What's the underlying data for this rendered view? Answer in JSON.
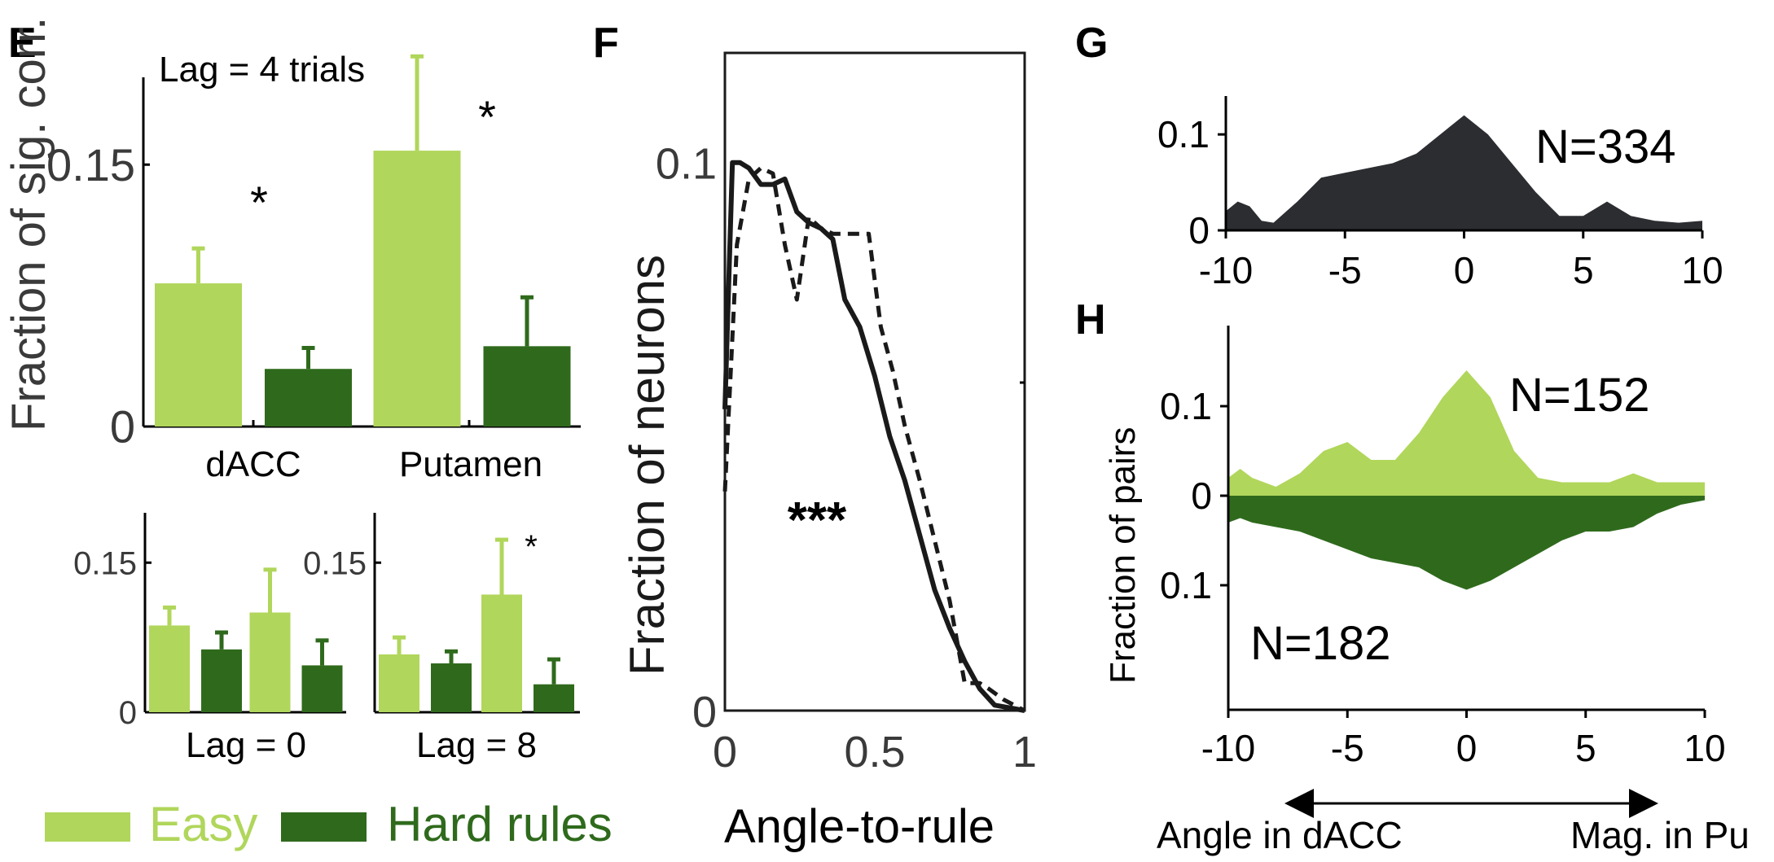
{
  "colors": {
    "easy": "#b0d65b",
    "hard": "#2f6a1c",
    "dark": "#2b2d31",
    "line": "#1a1a1a"
  },
  "panel_letters": {
    "E": "E",
    "F": "F",
    "G": "G",
    "H": "H"
  },
  "legend": {
    "easy": "Easy",
    "hard": "Hard rules"
  },
  "chart_data": [
    {
      "id": "E-main",
      "type": "bar",
      "title": "Lag = 4 trials",
      "ylabel": "Fraction of sig. corr.",
      "categories": [
        "dACC",
        "Putamen"
      ],
      "series": [
        {
          "name": "Easy",
          "values": [
            0.082,
            0.158
          ],
          "errors": [
            0.02,
            0.054
          ]
        },
        {
          "name": "Hard rules",
          "values": [
            0.033,
            0.046
          ],
          "errors": [
            0.012,
            0.028
          ]
        }
      ],
      "ylim": [
        0,
        0.2
      ],
      "yticks": [
        0,
        0.15
      ],
      "ytick_labels": [
        "0",
        "0.15"
      ],
      "annotations": [
        "*",
        "*"
      ]
    },
    {
      "id": "E-lag0",
      "type": "bar",
      "xlabel": "Lag = 0",
      "series": [
        {
          "name": "Easy",
          "values": [
            0.087,
            0.1
          ],
          "errors": [
            0.018,
            0.043
          ]
        },
        {
          "name": "Hard rules",
          "values": [
            0.063,
            0.047
          ],
          "errors": [
            0.017,
            0.025
          ]
        }
      ],
      "ylim": [
        0,
        0.2
      ],
      "yticks": [
        0,
        0.15
      ],
      "ytick_labels": [
        "0",
        "0.15"
      ]
    },
    {
      "id": "E-lag8",
      "type": "bar",
      "xlabel": "Lag = 8",
      "series": [
        {
          "name": "Easy",
          "values": [
            0.058,
            0.118
          ],
          "errors": [
            0.017,
            0.055
          ]
        },
        {
          "name": "Hard rules",
          "values": [
            0.049,
            0.028
          ],
          "errors": [
            0.012,
            0.025
          ]
        }
      ],
      "ylim": [
        0,
        0.2
      ],
      "yticks": [
        0.15
      ],
      "ytick_labels": [
        "0.15"
      ],
      "annotations": [
        "*"
      ]
    },
    {
      "id": "F",
      "type": "line",
      "xlabel": "Angle-to-rule",
      "ylabel": "Fraction of neurons",
      "xlim": [
        0,
        1
      ],
      "ylim": [
        0,
        0.12
      ],
      "xticks": [
        0,
        0.5,
        1
      ],
      "xtick_labels": [
        "0",
        "0.5",
        "1"
      ],
      "yticks": [
        0,
        0.1
      ],
      "ytick_labels": [
        "0",
        "0.1"
      ],
      "series": [
        {
          "style": "solid",
          "x": [
            0,
            0.025,
            0.05,
            0.08,
            0.12,
            0.16,
            0.2,
            0.24,
            0.28,
            0.32,
            0.36,
            0.4,
            0.45,
            0.5,
            0.55,
            0.6,
            0.65,
            0.7,
            0.75,
            0.8,
            0.85,
            0.9,
            0.95,
            1.0
          ],
          "y": [
            0.055,
            0.1,
            0.1,
            0.099,
            0.096,
            0.096,
            0.097,
            0.091,
            0.089,
            0.088,
            0.086,
            0.075,
            0.07,
            0.061,
            0.05,
            0.042,
            0.032,
            0.022,
            0.015,
            0.009,
            0.004,
            0.001,
            0.0005,
            0
          ]
        },
        {
          "style": "dashed",
          "x": [
            0,
            0.04,
            0.08,
            0.12,
            0.16,
            0.2,
            0.24,
            0.28,
            0.32,
            0.36,
            0.4,
            0.44,
            0.48,
            0.52,
            0.56,
            0.6,
            0.65,
            0.7,
            0.75,
            0.8,
            0.85,
            0.88,
            0.93,
            1.0
          ],
          "y": [
            0.04,
            0.085,
            0.097,
            0.099,
            0.098,
            0.085,
            0.075,
            0.09,
            0.088,
            0.087,
            0.087,
            0.087,
            0.087,
            0.07,
            0.062,
            0.052,
            0.042,
            0.031,
            0.02,
            0.005,
            0.005,
            0.004,
            0.002,
            0
          ]
        }
      ],
      "annotations": [
        "***"
      ]
    },
    {
      "id": "G",
      "type": "area",
      "xlim": [
        -10,
        10
      ],
      "ylim": [
        0,
        0.14
      ],
      "xticks": [
        -10,
        -5,
        0,
        5,
        10
      ],
      "xtick_labels": [
        "-10",
        "-5",
        "0",
        "5",
        "10"
      ],
      "yticks": [
        0,
        0.1
      ],
      "ytick_labels": [
        "0",
        "0.1"
      ],
      "x": [
        -10,
        -9.5,
        -9,
        -8.5,
        -8,
        -7,
        -6,
        -5,
        -4,
        -3,
        -2,
        -1,
        0,
        1,
        2,
        3,
        4,
        5,
        6,
        7,
        8,
        9,
        10
      ],
      "y": [
        0.02,
        0.03,
        0.025,
        0.01,
        0.008,
        0.03,
        0.055,
        0.06,
        0.065,
        0.07,
        0.08,
        0.1,
        0.12,
        0.1,
        0.07,
        0.04,
        0.015,
        0.015,
        0.03,
        0.015,
        0.01,
        0.008,
        0.01
      ],
      "annotations": [
        "N=334"
      ]
    },
    {
      "id": "H",
      "type": "area",
      "ylabel": "Fraction of pairs",
      "xlim": [
        -10,
        10
      ],
      "ylim": [
        -0.15,
        0.13
      ],
      "xticks": [
        -10,
        -5,
        0,
        5,
        10
      ],
      "xtick_labels": [
        "-10",
        "-5",
        "0",
        "5",
        "10"
      ],
      "yticks": [
        0.1,
        0,
        -0.1
      ],
      "ytick_labels": [
        "0.1",
        "0",
        "0.1"
      ],
      "x": [
        -10,
        -9.5,
        -9,
        -8,
        -7,
        -6,
        -5,
        -4,
        -3,
        -2,
        -1,
        0,
        1,
        2,
        3,
        4,
        5,
        6,
        7,
        8,
        9,
        10
      ],
      "series": [
        {
          "name": "Easy",
          "y": [
            0.02,
            0.03,
            0.02,
            0.01,
            0.025,
            0.05,
            0.06,
            0.04,
            0.04,
            0.07,
            0.11,
            0.14,
            0.11,
            0.05,
            0.02,
            0.015,
            0.015,
            0.015,
            0.025,
            0.015,
            0.015,
            0.015
          ]
        },
        {
          "name": "Hard rules",
          "y": [
            0.03,
            0.025,
            0.03,
            0.035,
            0.04,
            0.05,
            0.06,
            0.07,
            0.075,
            0.08,
            0.095,
            0.105,
            0.095,
            0.08,
            0.065,
            0.05,
            0.04,
            0.04,
            0.035,
            0.02,
            0.01,
            0.005
          ]
        }
      ],
      "annotations": [
        "N=152",
        "N=182"
      ],
      "arrow_labels": [
        "Angle in dACC",
        "Mag. in Pu"
      ]
    }
  ]
}
